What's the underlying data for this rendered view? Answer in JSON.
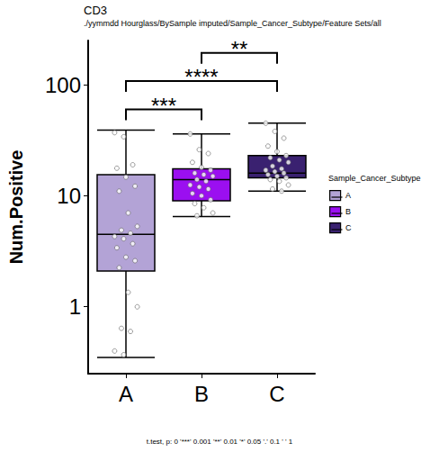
{
  "chart_data": {
    "type": "boxplot",
    "title": "CD3",
    "subtitle": "./yymmdd Hourglass/BySample imputed/Sample_Cancer_Subtype/Feature Sets/all",
    "y_label": "Num.Positive",
    "categories": [
      "A",
      "B",
      "C"
    ],
    "colors": [
      "#b3a3d6",
      "#9b0ff0",
      "#3a2170"
    ],
    "boxes": [
      [
        0.35,
        2.1,
        4.5,
        15.5,
        39
      ],
      [
        6.5,
        9,
        14,
        17.5,
        36
      ],
      [
        11,
        14.5,
        16,
        23,
        45
      ]
    ],
    "points": [
      [
        37,
        34,
        19,
        17.7,
        14.7,
        12.2,
        11,
        7,
        5.3,
        4.9,
        4.6,
        4.3,
        4.1,
        3.7,
        3.4,
        2.8,
        2.6,
        2.25,
        1.35,
        1.0,
        0.64,
        0.6,
        0.4,
        0.37
      ],
      [
        36,
        26,
        24,
        20,
        18,
        17,
        16,
        15.5,
        15,
        14,
        13.5,
        12.5,
        12,
        11.5,
        10.5,
        10,
        9.2,
        8.5,
        7.8,
        7,
        6.6
      ],
      [
        45,
        38,
        33,
        28,
        25,
        23,
        22,
        21,
        20,
        18.5,
        17.5,
        17,
        16.5,
        16,
        15.5,
        15,
        14.5,
        14,
        13.5,
        12.5,
        11.5,
        11
      ]
    ],
    "log": "y",
    "ylim": [
      0.25,
      250
    ],
    "yticks": [
      1,
      10,
      100
    ],
    "grid": false,
    "legend": "right",
    "legend_title": "Sample_Cancer_Subtype",
    "annotations": [
      {
        "from": "A",
        "to": "B",
        "y": 60,
        "label": "***"
      },
      {
        "from": "A",
        "to": "C",
        "y": 108,
        "label": "****"
      },
      {
        "from": "B",
        "to": "C",
        "y": 193,
        "label": "**"
      }
    ],
    "footnote": "t.test, p: 0 '***' 0.001 '**' 0.01 '*' 0.05 '.' 0.1 ' ' 1"
  }
}
